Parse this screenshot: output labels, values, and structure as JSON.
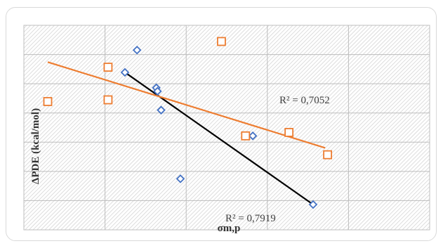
{
  "chart_data": {
    "type": "scatter",
    "title": "",
    "xlabel": "σm,p",
    "ylabel": "ΔPDE (kcal/mol)",
    "grid": true,
    "colors": {
      "blue": "#4472c4",
      "orange": "#ed7d31",
      "black": "#000000"
    },
    "series": [
      {
        "marker": "diamond",
        "color": "#4472c4",
        "points": [
          [
            0.22,
            0.77
          ],
          [
            0.27,
            0.9
          ],
          [
            0.35,
            0.68
          ],
          [
            0.355,
            0.66
          ],
          [
            0.37,
            0.55
          ],
          [
            0.45,
            0.15
          ],
          [
            0.75,
            0.4
          ],
          [
            1.0,
            0.0
          ]
        ],
        "trendline": {
          "color": "#000000",
          "x": [
            0.22,
            1.0
          ],
          "y": [
            0.77,
            0.0
          ]
        },
        "r2_label": "R² = 0,7919"
      },
      {
        "marker": "square",
        "color": "#ed7d31",
        "points": [
          [
            -0.1,
            0.6
          ],
          [
            0.15,
            0.8
          ],
          [
            0.15,
            0.61
          ],
          [
            0.62,
            0.95
          ],
          [
            0.72,
            0.4
          ],
          [
            0.9,
            0.42
          ],
          [
            1.06,
            0.29
          ]
        ],
        "trendline": {
          "color": "#ed7d31",
          "x": [
            -0.1,
            1.05
          ],
          "y": [
            0.83,
            0.33
          ]
        },
        "r2_label": "R² = 0,7052"
      }
    ]
  }
}
